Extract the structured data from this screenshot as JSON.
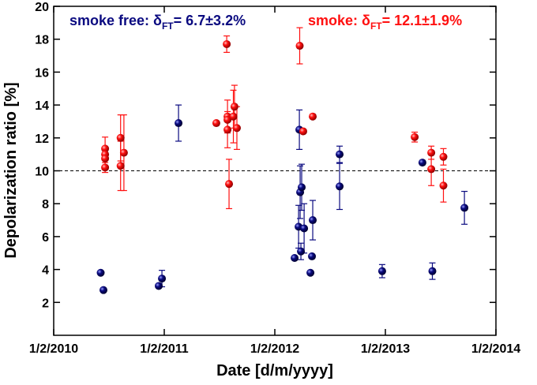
{
  "chart_data": {
    "type": "scatter",
    "xlabel": "Date [d/m/yyyy]",
    "ylabel": "Depolarization ratio [%]",
    "xlim": [
      2010.085,
      2014.085
    ],
    "xticks": [
      {
        "value": 2010.085,
        "label": "1/2/2010"
      },
      {
        "value": 2011.085,
        "label": "1/2/2011"
      },
      {
        "value": 2012.085,
        "label": "1/2/2012"
      },
      {
        "value": 2013.085,
        "label": "1/2/2013"
      },
      {
        "value": 2014.085,
        "label": "1/2/2014"
      }
    ],
    "ylim": [
      0,
      20
    ],
    "yticks": [
      2,
      4,
      6,
      8,
      10,
      12,
      14,
      16,
      18,
      20
    ],
    "reference_line": 10,
    "series": [
      {
        "name": "smoke free: δ",
        "sub": "FT",
        "stat": "= 6.7±3.2%",
        "color": "#0a0a80",
        "x": [
          2010.51,
          2010.535,
          2011.035,
          2011.064,
          2011.214,
          2012.264,
          2012.3,
          2012.314,
          2012.321,
          2012.307,
          2012.328,
          2012.35,
          2012.407,
          2012.421,
          2012.428,
          2012.671,
          2012.671,
          2013.056,
          2013.42,
          2013.51,
          2013.8
        ],
        "values": [
          3.8,
          2.75,
          3.0,
          3.45,
          12.9,
          4.7,
          6.6,
          8.7,
          5.1,
          12.5,
          9.0,
          6.5,
          3.8,
          4.8,
          7.0,
          9.05,
          11.0,
          3.9,
          10.5,
          3.9,
          7.75
        ],
        "errors": [
          null,
          null,
          null,
          0.5,
          1.1,
          null,
          1.3,
          1.6,
          0.5,
          1.2,
          1.4,
          1.5,
          null,
          null,
          1.2,
          1.4,
          0.5,
          0.4,
          null,
          0.5,
          1.0
        ]
      },
      {
        "name": "smoke: δ",
        "sub": "FT",
        "stat": "= 12.1±1.9%",
        "color": "#ff1010",
        "x": [
          2010.55,
          2010.55,
          2010.55,
          2010.55,
          2010.69,
          2010.69,
          2010.72,
          2011.556,
          2011.65,
          2011.657,
          2011.657,
          2011.657,
          2011.671,
          2011.71,
          2011.72,
          2011.742,
          2012.31,
          2012.342,
          2012.428,
          2013.35,
          2013.5,
          2013.5,
          2013.61,
          2013.61
        ],
        "values": [
          11.35,
          11.0,
          10.75,
          10.2,
          12.0,
          10.3,
          11.1,
          12.9,
          17.7,
          13.3,
          13.1,
          12.5,
          9.2,
          13.3,
          13.9,
          12.6,
          17.6,
          12.4,
          13.3,
          12.05,
          11.1,
          10.1,
          10.85,
          9.1
        ],
        "errors": [
          0.7,
          null,
          null,
          0.3,
          1.4,
          1.5,
          2.3,
          null,
          0.5,
          1.0,
          null,
          1.1,
          1.5,
          1.6,
          1.3,
          1.3,
          1.1,
          null,
          null,
          0.3,
          0.4,
          1.0,
          0.5,
          1.0
        ]
      }
    ]
  }
}
